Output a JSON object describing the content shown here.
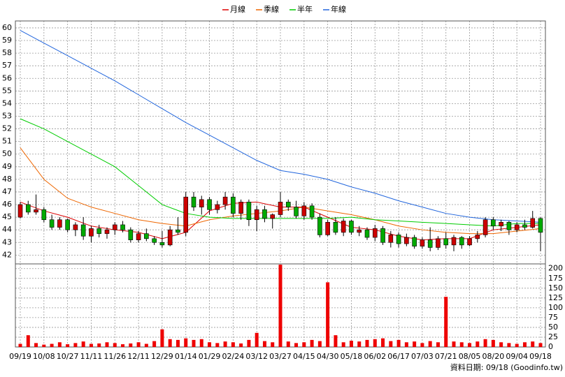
{
  "chart_data": {
    "type": "candlestick",
    "categories": [
      "09/19",
      null,
      null,
      "10/08",
      null,
      null,
      "10/27",
      null,
      null,
      "11/11",
      null,
      null,
      "11/26",
      null,
      null,
      "12/11",
      null,
      null,
      "12/29",
      null,
      null,
      "01/14",
      null,
      null,
      "01/29",
      null,
      null,
      "02/24",
      null,
      null,
      "03/12",
      null,
      null,
      "03/27",
      null,
      null,
      "04/15",
      null,
      null,
      "04/30",
      null,
      null,
      "05/18",
      null,
      null,
      "06/02",
      null,
      null,
      "06/17",
      null,
      null,
      "07/03",
      null,
      null,
      "07/21",
      null,
      null,
      "08/05",
      null,
      null,
      "08/20",
      null,
      null,
      "09/04",
      null,
      null,
      "09/18"
    ],
    "open": [
      45.0,
      46.0,
      45.4,
      45.6,
      44.8,
      44.2,
      44.8,
      44.0,
      44.4,
      43.5,
      44.1,
      43.7,
      44.0,
      44.4,
      44.0,
      43.2,
      43.7,
      43.3,
      43.0,
      42.8,
      44.0,
      43.8,
      46.6,
      45.8,
      46.4,
      45.6,
      46.0,
      46.6,
      45.3,
      46.2,
      44.8,
      45.6,
      44.9,
      45.2,
      46.2,
      45.8,
      45.1,
      45.9,
      45.0,
      43.6,
      44.6,
      43.8,
      44.7,
      43.8,
      44.0,
      43.4,
      44.1,
      43.0,
      43.6,
      42.9,
      43.4,
      42.7,
      43.2,
      42.6,
      43.3,
      42.8,
      43.4,
      42.8,
      43.3,
      43.6,
      44.8,
      44.3,
      44.6,
      44.0,
      44.4,
      44.2,
      44.9
    ],
    "high": [
      46.2,
      46.3,
      46.8,
      45.8,
      45.2,
      45.0,
      44.9,
      44.6,
      45.0,
      44.3,
      44.4,
      44.2,
      44.6,
      44.7,
      44.2,
      43.9,
      44.1,
      43.5,
      43.9,
      44.3,
      45.0,
      47.0,
      47.0,
      46.7,
      46.6,
      46.3,
      47.0,
      46.9,
      46.4,
      46.4,
      45.9,
      45.9,
      45.3,
      47.0,
      46.4,
      46.3,
      46.2,
      46.1,
      45.3,
      44.8,
      45.0,
      44.9,
      44.8,
      44.3,
      44.2,
      44.4,
      44.3,
      43.9,
      43.8,
      43.7,
      43.6,
      43.4,
      44.2,
      43.5,
      43.8,
      43.6,
      43.5,
      43.5,
      43.9,
      45.0,
      45.0,
      44.8,
      44.7,
      44.6,
      44.8,
      45.5,
      45.0
    ],
    "low": [
      44.9,
      45.2,
      45.2,
      44.6,
      44.0,
      44.0,
      43.8,
      43.5,
      43.2,
      43.0,
      43.4,
      43.3,
      43.6,
      43.8,
      43.0,
      43.0,
      43.1,
      42.8,
      42.6,
      42.7,
      43.6,
      43.5,
      45.5,
      45.2,
      45.2,
      45.3,
      45.6,
      45.0,
      44.8,
      44.3,
      43.9,
      44.6,
      44.1,
      45.0,
      45.5,
      44.9,
      44.8,
      44.8,
      43.4,
      43.5,
      43.6,
      43.5,
      43.6,
      43.5,
      43.2,
      43.1,
      42.8,
      42.6,
      42.6,
      42.7,
      42.5,
      42.5,
      42.3,
      42.4,
      42.5,
      42.3,
      42.5,
      42.7,
      43.0,
      43.4,
      44.0,
      43.9,
      43.6,
      43.8,
      44.0,
      44.1,
      42.3
    ],
    "close": [
      46.0,
      45.4,
      45.6,
      44.8,
      44.2,
      44.8,
      44.0,
      44.4,
      43.5,
      44.1,
      43.7,
      44.0,
      44.4,
      44.0,
      43.2,
      43.7,
      43.3,
      43.0,
      42.8,
      44.0,
      43.8,
      46.6,
      45.8,
      46.4,
      45.6,
      46.0,
      46.6,
      45.3,
      46.2,
      44.8,
      45.6,
      44.9,
      45.2,
      46.2,
      45.8,
      45.1,
      45.9,
      45.0,
      43.6,
      44.6,
      43.8,
      44.7,
      43.8,
      44.0,
      43.4,
      44.1,
      43.0,
      43.6,
      42.9,
      43.4,
      42.7,
      43.2,
      42.6,
      43.3,
      42.8,
      43.4,
      42.8,
      43.3,
      43.6,
      44.8,
      44.3,
      44.6,
      44.0,
      44.4,
      44.2,
      44.9,
      43.8
    ],
    "up_color": "#cc0000",
    "down_color": "#00aa00",
    "ylim": [
      41.3,
      60.55
    ],
    "yticks": [
      42,
      43,
      44,
      45,
      46,
      47,
      48,
      49,
      50,
      51,
      52,
      53,
      54,
      55,
      56,
      57,
      58,
      59,
      60
    ],
    "series": [
      {
        "name": "月線",
        "color": "#dd0000",
        "x": [
          0,
          3,
          6,
          9,
          12,
          15,
          18,
          21,
          24,
          27,
          30,
          33,
          36,
          39,
          42,
          45,
          48,
          51,
          54,
          57,
          60,
          63,
          66
        ],
        "values": [
          46.2,
          45.5,
          45.0,
          44.3,
          44.0,
          43.8,
          43.3,
          43.8,
          45.5,
          46.1,
          46.2,
          45.8,
          45.8,
          45.0,
          44.2,
          44.0,
          43.5,
          43.2,
          43.3,
          43.3,
          44.0,
          44.2,
          44.4
        ]
      },
      {
        "name": "季線",
        "color": "#ee6600",
        "x": [
          0,
          3,
          6,
          9,
          12,
          15,
          18,
          21,
          24,
          27,
          30,
          33,
          36,
          39,
          42,
          45,
          48,
          51,
          54,
          57,
          60,
          63,
          66
        ],
        "values": [
          50.5,
          48.0,
          46.5,
          45.8,
          45.3,
          44.8,
          44.5,
          44.3,
          44.8,
          45.1,
          45.3,
          45.5,
          45.8,
          45.5,
          45.2,
          44.8,
          44.3,
          44.0,
          43.8,
          43.7,
          43.7,
          43.9,
          44.1
        ]
      },
      {
        "name": "半年",
        "color": "#00cc00",
        "x": [
          0,
          3,
          6,
          9,
          12,
          15,
          18,
          21,
          24,
          27,
          30,
          33,
          36,
          39,
          42,
          45,
          48,
          51,
          54,
          57,
          60,
          63,
          66
        ],
        "values": [
          52.8,
          52.0,
          51.0,
          50.0,
          49.0,
          47.5,
          46.0,
          45.3,
          45.0,
          44.9,
          44.9,
          44.9,
          44.9,
          44.9,
          45.0,
          44.8,
          44.7,
          44.6,
          44.5,
          44.4,
          44.3,
          44.5,
          44.5
        ]
      },
      {
        "name": "年線",
        "color": "#2266dd",
        "x": [
          0,
          3,
          6,
          9,
          12,
          15,
          18,
          21,
          24,
          27,
          30,
          33,
          36,
          39,
          42,
          45,
          48,
          51,
          54,
          57,
          60,
          63,
          66
        ],
        "values": [
          59.8,
          58.8,
          57.8,
          56.8,
          55.8,
          54.7,
          53.6,
          52.5,
          51.5,
          50.5,
          49.5,
          48.7,
          48.4,
          48.0,
          47.4,
          46.9,
          46.3,
          45.8,
          45.3,
          45.0,
          44.8,
          44.7,
          44.6
        ]
      }
    ],
    "volume": {
      "color": "#ee0000",
      "values": [
        8,
        30,
        10,
        6,
        8,
        12,
        7,
        10,
        14,
        8,
        9,
        12,
        10,
        7,
        9,
        12,
        8,
        15,
        45,
        20,
        18,
        22,
        18,
        20,
        12,
        10,
        14,
        12,
        9,
        18,
        36,
        15,
        12,
        210,
        14,
        10,
        12,
        18,
        15,
        165,
        30,
        12,
        16,
        14,
        18,
        20,
        22,
        15,
        18,
        12,
        14,
        10,
        15,
        12,
        128,
        14,
        12,
        10,
        14,
        20,
        18,
        12,
        10,
        8,
        12,
        14,
        10
      ],
      "ylim": [
        0,
        212
      ],
      "yticks": [
        0,
        25,
        50,
        75,
        100,
        125,
        150,
        175,
        200
      ]
    },
    "grid": true,
    "note": "資料日期: 09/18  (Goodinfo.tw)"
  }
}
